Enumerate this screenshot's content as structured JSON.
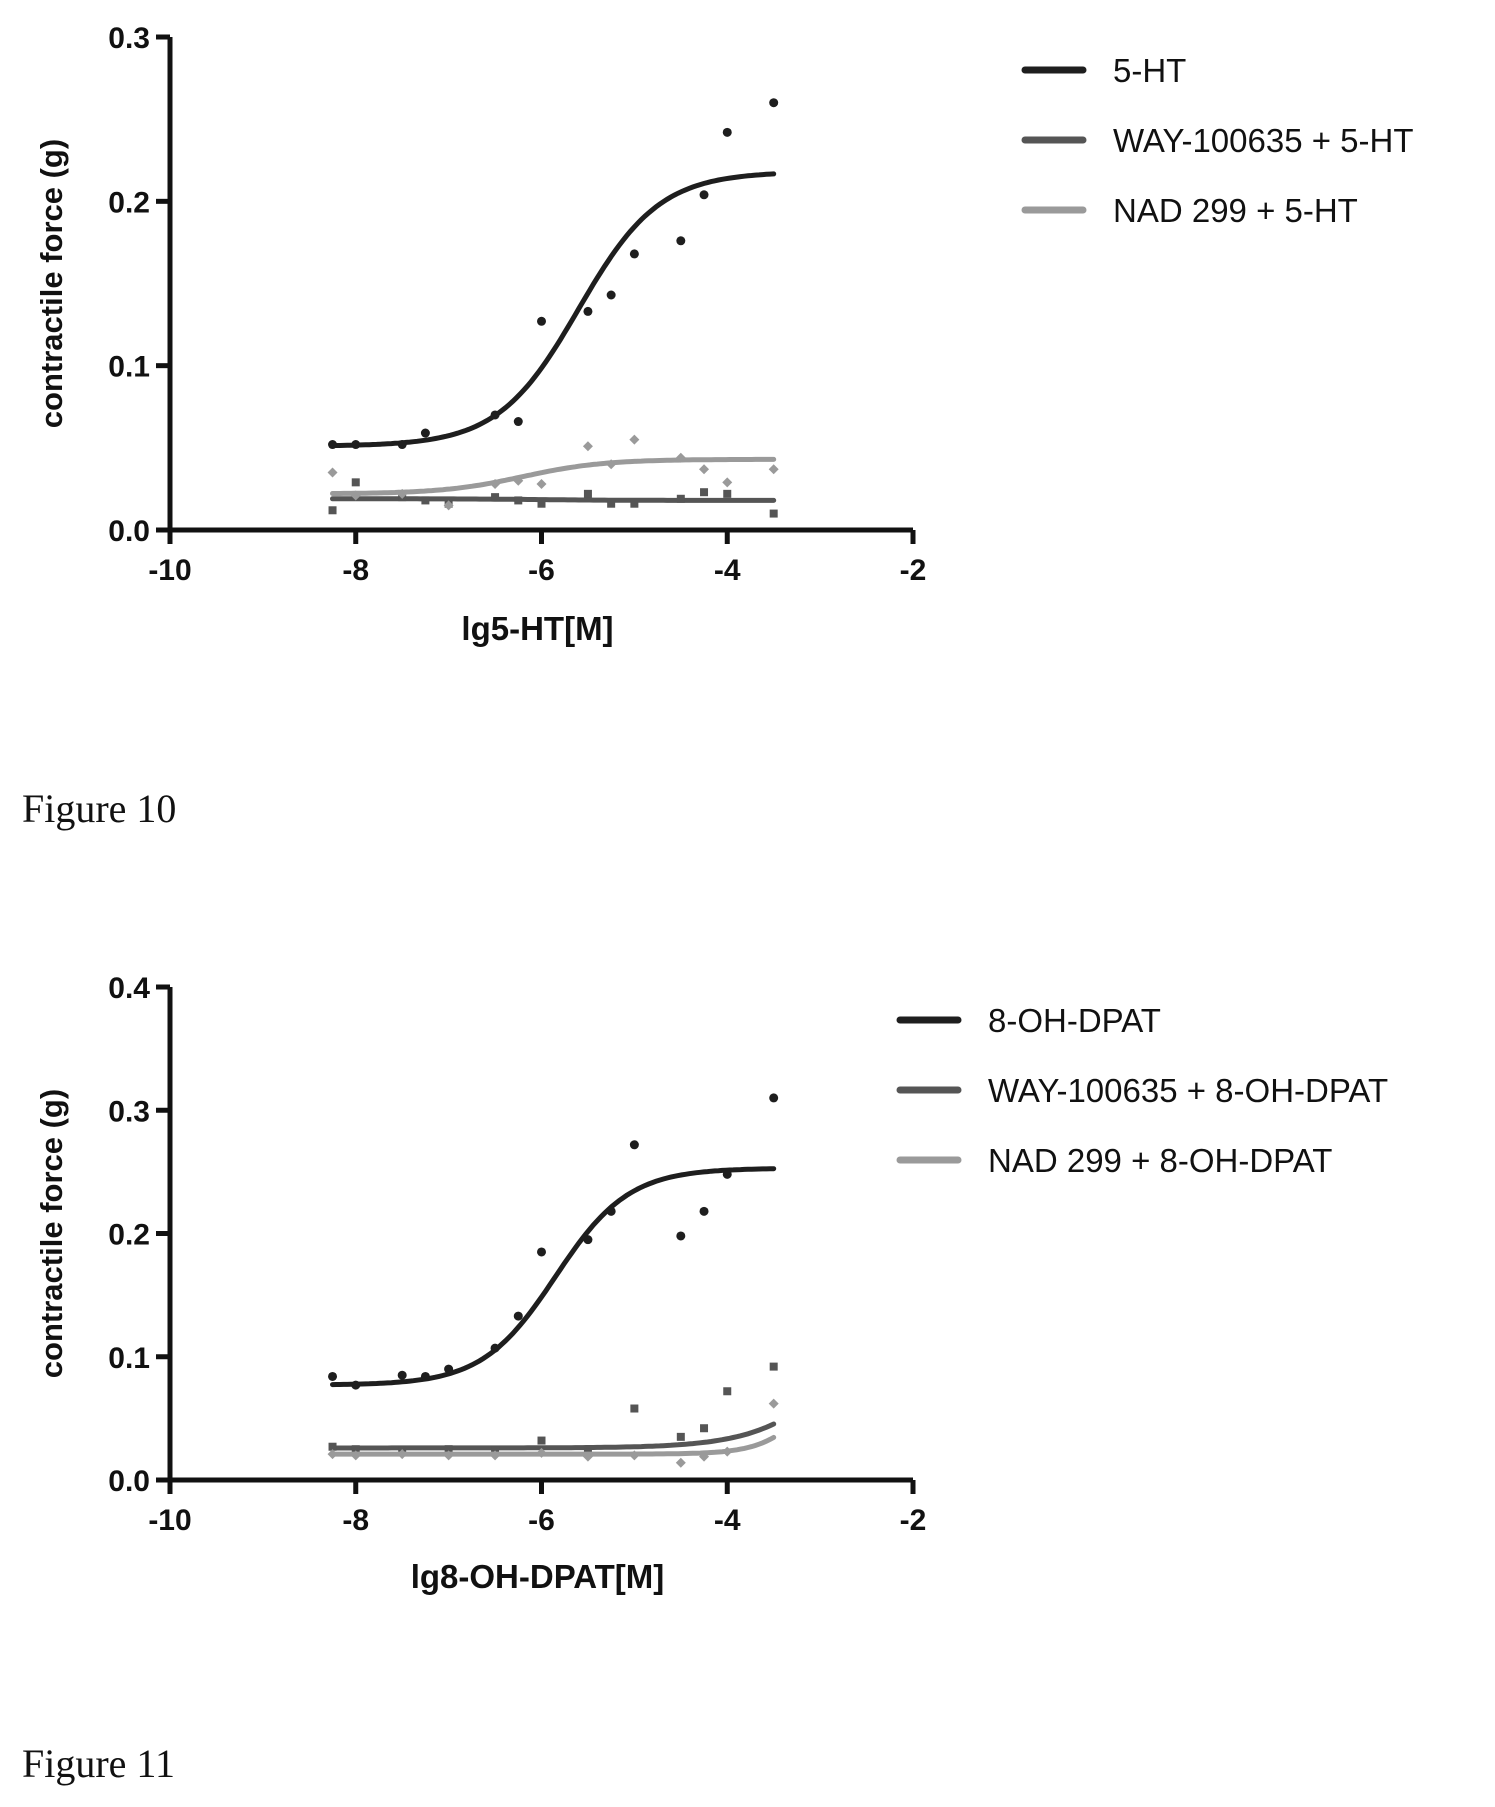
{
  "captions": [
    "Figure 10",
    "Figure 11"
  ],
  "chart_data": [
    {
      "type": "scatter",
      "fit": "sigmoid curve per series",
      "title": "",
      "xlabel": "lg5-HT[M]",
      "ylabel": "contractile force (g)",
      "xlim": [
        -10,
        -2
      ],
      "ylim": [
        0,
        0.3
      ],
      "xticks": [
        -10,
        -8,
        -6,
        -4,
        -2
      ],
      "xtick_labels": [
        "-10",
        "-8",
        "-6",
        "-4",
        "-2"
      ],
      "yticks": [
        0,
        0.1,
        0.2,
        0.3
      ],
      "ytick_labels": [
        "0.0",
        "0.1",
        "0.2",
        "0.3"
      ],
      "legend_position": "top-right, outside plot",
      "series": [
        {
          "name": "5-HT",
          "color": "#1e1e1e",
          "points": [
            [
              -8.25,
              0.052
            ],
            [
              -8.0,
              0.052
            ],
            [
              -7.5,
              0.052
            ],
            [
              -7.25,
              0.059
            ],
            [
              -6.5,
              0.07
            ],
            [
              -6.25,
              0.066
            ],
            [
              -6.0,
              0.127
            ],
            [
              -5.5,
              0.133
            ],
            [
              -5.25,
              0.143
            ],
            [
              -5.0,
              0.168
            ],
            [
              -4.5,
              0.176
            ],
            [
              -4.25,
              0.204
            ],
            [
              -4.0,
              0.242
            ],
            [
              -3.5,
              0.26
            ]
          ],
          "curve": {
            "bottom": 0.051,
            "top": 0.218,
            "logEC50": -5.6,
            "hill": 1.0,
            "x_range": [
              -8.25,
              -3.5
            ]
          }
        },
        {
          "name": "WAY-100635 + 5-HT",
          "color": "#555555",
          "points": [
            [
              -8.25,
              0.012
            ],
            [
              -8.0,
              0.029
            ],
            [
              -7.5,
              0.02
            ],
            [
              -7.25,
              0.018
            ],
            [
              -7.0,
              0.016
            ],
            [
              -6.5,
              0.02
            ],
            [
              -6.25,
              0.018
            ],
            [
              -6.0,
              0.016
            ],
            [
              -5.5,
              0.022
            ],
            [
              -5.25,
              0.016
            ],
            [
              -5.0,
              0.016
            ],
            [
              -4.5,
              0.019
            ],
            [
              -4.25,
              0.023
            ],
            [
              -4.0,
              0.022
            ],
            [
              -3.5,
              0.01
            ]
          ],
          "curve": {
            "bottom": 0.019,
            "top": 0.018,
            "logEC50": -6.0,
            "hill": 1.0,
            "x_range": [
              -8.25,
              -3.5
            ]
          }
        },
        {
          "name": "NAD 299 + 5-HT",
          "color": "#9a9a9a",
          "points": [
            [
              -8.25,
              0.035
            ],
            [
              -8.0,
              0.021
            ],
            [
              -7.5,
              0.022
            ],
            [
              -7.0,
              0.015
            ],
            [
              -6.5,
              0.028
            ],
            [
              -6.25,
              0.03
            ],
            [
              -6.0,
              0.028
            ],
            [
              -5.5,
              0.051
            ],
            [
              -5.25,
              0.04
            ],
            [
              -5.0,
              0.055
            ],
            [
              -4.5,
              0.044
            ],
            [
              -4.25,
              0.037
            ],
            [
              -4.0,
              0.029
            ],
            [
              -3.5,
              0.037
            ]
          ],
          "curve": {
            "bottom": 0.022,
            "top": 0.043,
            "logEC50": -6.2,
            "hill": 1.0,
            "x_range": [
              -8.25,
              -3.5
            ]
          }
        }
      ]
    },
    {
      "type": "scatter",
      "fit": "sigmoid curve per series",
      "title": "",
      "xlabel": "lg8-OH-DPAT[M]",
      "ylabel": "contractile force (g)",
      "xlim": [
        -10,
        -2
      ],
      "ylim": [
        0,
        0.4
      ],
      "xticks": [
        -10,
        -8,
        -6,
        -4,
        -2
      ],
      "xtick_labels": [
        "-10",
        "-8",
        "-6",
        "-4",
        "-2"
      ],
      "yticks": [
        0,
        0.1,
        0.2,
        0.3,
        0.4
      ],
      "ytick_labels": [
        "0.0",
        "0.1",
        "0.2",
        "0.3",
        "0.4"
      ],
      "legend_position": "top-right, outside plot",
      "series": [
        {
          "name": "8-OH-DPAT",
          "color": "#1e1e1e",
          "points": [
            [
              -8.25,
              0.084
            ],
            [
              -8.0,
              0.077
            ],
            [
              -7.5,
              0.085
            ],
            [
              -7.25,
              0.084
            ],
            [
              -7.0,
              0.09
            ],
            [
              -6.5,
              0.107
            ],
            [
              -6.25,
              0.133
            ],
            [
              -6.0,
              0.185
            ],
            [
              -5.5,
              0.195
            ],
            [
              -5.25,
              0.218
            ],
            [
              -5.0,
              0.272
            ],
            [
              -4.5,
              0.198
            ],
            [
              -4.25,
              0.218
            ],
            [
              -4.0,
              0.248
            ],
            [
              -3.5,
              0.31
            ]
          ],
          "curve": {
            "bottom": 0.077,
            "top": 0.253,
            "logEC50": -5.85,
            "hill": 1.1,
            "x_range": [
              -8.25,
              -3.5
            ]
          }
        },
        {
          "name": "WAY-100635 + 8-OH-DPAT",
          "color": "#555555",
          "points": [
            [
              -8.25,
              0.027
            ],
            [
              -8.0,
              0.025
            ],
            [
              -7.5,
              0.024
            ],
            [
              -7.0,
              0.025
            ],
            [
              -6.5,
              0.024
            ],
            [
              -6.0,
              0.032
            ],
            [
              -5.5,
              0.022
            ],
            [
              -5.0,
              0.058
            ],
            [
              -4.5,
              0.035
            ],
            [
              -4.25,
              0.042
            ],
            [
              -4.0,
              0.072
            ],
            [
              -3.5,
              0.092
            ]
          ],
          "curve": {
            "bottom": 0.026,
            "top": 0.2,
            "logEC50": -2.5,
            "hill": 0.9,
            "x_range": [
              -8.25,
              -3.5
            ]
          }
        },
        {
          "name": "NAD 299 + 8-OH-DPAT",
          "color": "#9a9a9a",
          "points": [
            [
              -8.25,
              0.021
            ],
            [
              -8.0,
              0.02
            ],
            [
              -7.5,
              0.021
            ],
            [
              -7.0,
              0.02
            ],
            [
              -6.5,
              0.02
            ],
            [
              -6.0,
              0.022
            ],
            [
              -5.5,
              0.019
            ],
            [
              -5.0,
              0.02
            ],
            [
              -4.5,
              0.014
            ],
            [
              -4.25,
              0.019
            ],
            [
              -4.0,
              0.023
            ],
            [
              -3.5,
              0.062
            ]
          ],
          "curve": {
            "bottom": 0.021,
            "top": 0.12,
            "logEC50": -3.0,
            "hill": 1.6,
            "x_range": [
              -8.25,
              -3.5
            ]
          }
        }
      ]
    }
  ]
}
